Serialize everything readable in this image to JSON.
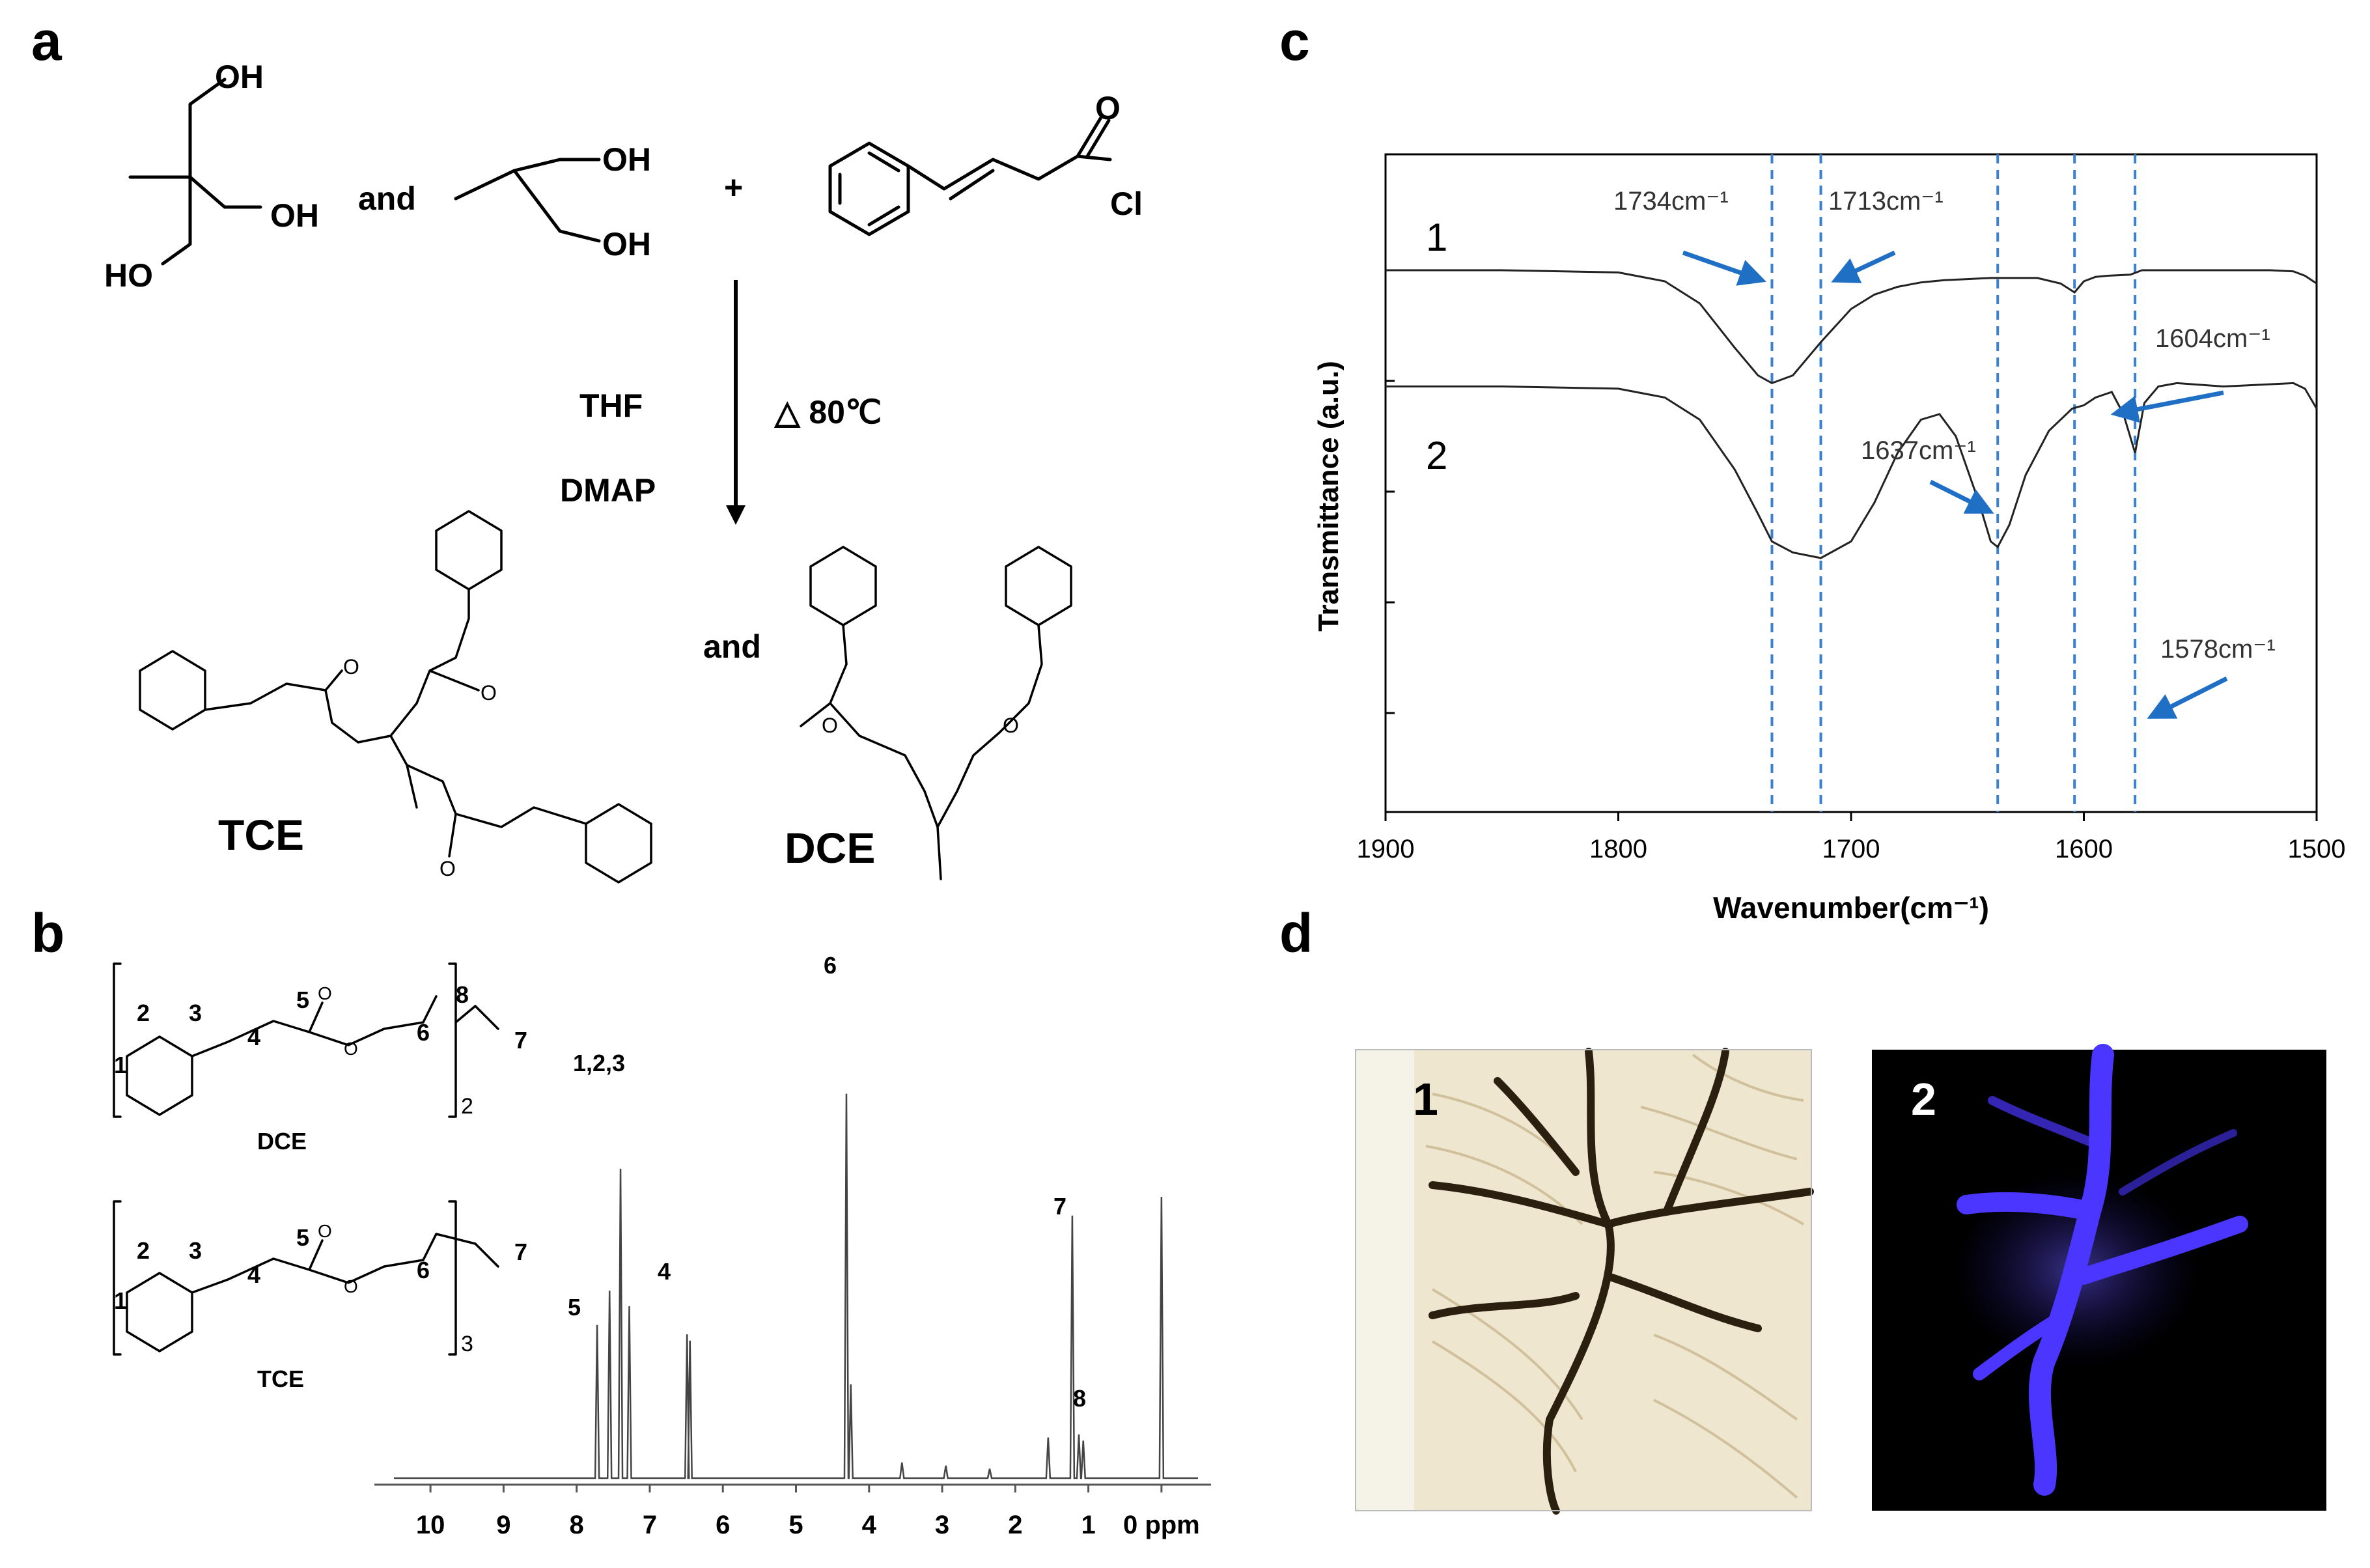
{
  "panels": {
    "a": {
      "letter": "a",
      "reagents": {
        "and1": "and",
        "plus": "+",
        "oh": "OH",
        "ho": "HO",
        "o": "O",
        "cl": "Cl"
      },
      "conditions": {
        "solvent": "THF",
        "catalyst": "DMAP",
        "heat": "△ 80℃"
      },
      "products": {
        "and2": "and",
        "tce": "TCE",
        "dce": "DCE"
      }
    },
    "b": {
      "letter": "b",
      "structures": {
        "dce_name": "DCE",
        "tce_name": "TCE",
        "dce_subscript": "2",
        "tce_subscript": "3",
        "atom_labels": [
          "1",
          "2",
          "3",
          "4",
          "5",
          "6",
          "7",
          "8"
        ],
        "o": "O"
      },
      "peak_labels": {
        "p123": "1,2,3",
        "p4": "4",
        "p5": "5",
        "p6": "6",
        "p7": "7",
        "p8": "8"
      },
      "axis": {
        "ticks": [
          "10",
          "9",
          "8",
          "7",
          "6",
          "5",
          "4",
          "3",
          "2",
          "1",
          "0 ppm"
        ]
      }
    },
    "c": {
      "letter": "c",
      "ylabel": "Transmittance (a.u.)",
      "xlabel": "Wavenumber(cm⁻¹)",
      "curve1_label": "1",
      "curve2_label": "2",
      "annotations": [
        "1734cm⁻¹",
        "1713cm⁻¹",
        "1604cm⁻¹",
        "1637cm⁻¹",
        "1578cm⁻¹"
      ]
    },
    "d": {
      "letter": "d",
      "image1_label": "1",
      "image2_label": "2"
    }
  },
  "chart_data": [
    {
      "type": "line",
      "panel": "b",
      "description_free": true,
      "xlabel": "ppm",
      "xlim": [
        10.5,
        -0.5
      ],
      "xticks": [
        10,
        9,
        8,
        7,
        6,
        5,
        4,
        3,
        2,
        1,
        0
      ],
      "peaks": [
        {
          "x": 7.72,
          "h": 0.49
        },
        {
          "x": 7.55,
          "h": 0.6
        },
        {
          "x": 7.4,
          "h": 0.99
        },
        {
          "x": 7.28,
          "h": 0.55
        },
        {
          "x": 6.49,
          "h": 0.46
        },
        {
          "x": 6.45,
          "h": 0.44
        },
        {
          "x": 4.31,
          "h": 1.23
        },
        {
          "x": 4.25,
          "h": 0.3
        },
        {
          "x": 3.55,
          "h": 0.05
        },
        {
          "x": 2.95,
          "h": 0.04
        },
        {
          "x": 2.35,
          "h": 0.03
        },
        {
          "x": 1.55,
          "h": 0.13
        },
        {
          "x": 1.22,
          "h": 0.84
        },
        {
          "x": 1.13,
          "h": 0.14
        },
        {
          "x": 1.07,
          "h": 0.12
        },
        {
          "x": 0.0,
          "h": 0.9
        }
      ]
    },
    {
      "type": "line",
      "panel": "c",
      "xlabel": "Wavenumber(cm⁻¹)",
      "ylabel": "Transmittance (a.u.)",
      "xlim": [
        1900,
        1500
      ],
      "xticks": [
        1900,
        1800,
        1700,
        1600,
        1500
      ],
      "series": [
        {
          "name": "1",
          "x": [
            1900,
            1850,
            1800,
            1780,
            1765,
            1750,
            1740,
            1734,
            1725,
            1713,
            1700,
            1690,
            1680,
            1670,
            1660,
            1650,
            1640,
            1630,
            1620,
            1610,
            1604,
            1600,
            1595,
            1590,
            1580,
            1575,
            1560,
            1540,
            1520,
            1510,
            1505,
            1500
          ],
          "y": [
            -1.0,
            -1.0,
            -1.02,
            -1.1,
            -1.3,
            -1.7,
            -1.95,
            -2.02,
            -1.95,
            -1.65,
            -1.35,
            -1.22,
            -1.15,
            -1.11,
            -1.09,
            -1.08,
            -1.07,
            -1.07,
            -1.07,
            -1.12,
            -1.2,
            -1.1,
            -1.06,
            -1.05,
            -1.04,
            -1.0,
            -1.0,
            -1.0,
            -1.0,
            -1.01,
            -1.05,
            -1.12
          ]
        },
        {
          "name": "2",
          "x": [
            1900,
            1850,
            1800,
            1780,
            1765,
            1750,
            1740,
            1734,
            1725,
            1713,
            1700,
            1690,
            1680,
            1670,
            1662,
            1655,
            1645,
            1640,
            1637,
            1632,
            1625,
            1615,
            1605,
            1600,
            1595,
            1588,
            1583,
            1578,
            1574,
            1568,
            1560,
            1540,
            1520,
            1510,
            1505,
            1500
          ],
          "y": [
            -2.05,
            -2.05,
            -2.07,
            -2.15,
            -2.35,
            -2.8,
            -3.2,
            -3.45,
            -3.55,
            -3.6,
            -3.45,
            -3.1,
            -2.65,
            -2.35,
            -2.3,
            -2.5,
            -3.1,
            -3.45,
            -3.5,
            -3.3,
            -2.85,
            -2.45,
            -2.25,
            -2.22,
            -2.15,
            -2.1,
            -2.3,
            -2.65,
            -2.2,
            -2.05,
            -2.02,
            -2.05,
            -2.03,
            -2.02,
            -2.07,
            -2.25
          ]
        }
      ],
      "reference_lines": [
        1734,
        1713,
        1637,
        1604,
        1578
      ],
      "reference_line_color": "#3a7fd0",
      "arrow_color": "#1f6fc5"
    }
  ],
  "colors": {
    "arrow": "#1f6fc5",
    "dashed": "#3a7fd0",
    "photo1_bg": "#efe6cf",
    "photo1_vein": "#2b1f10",
    "photo2_bg": "#000000",
    "photo2_fluor": "#4a36ff"
  }
}
